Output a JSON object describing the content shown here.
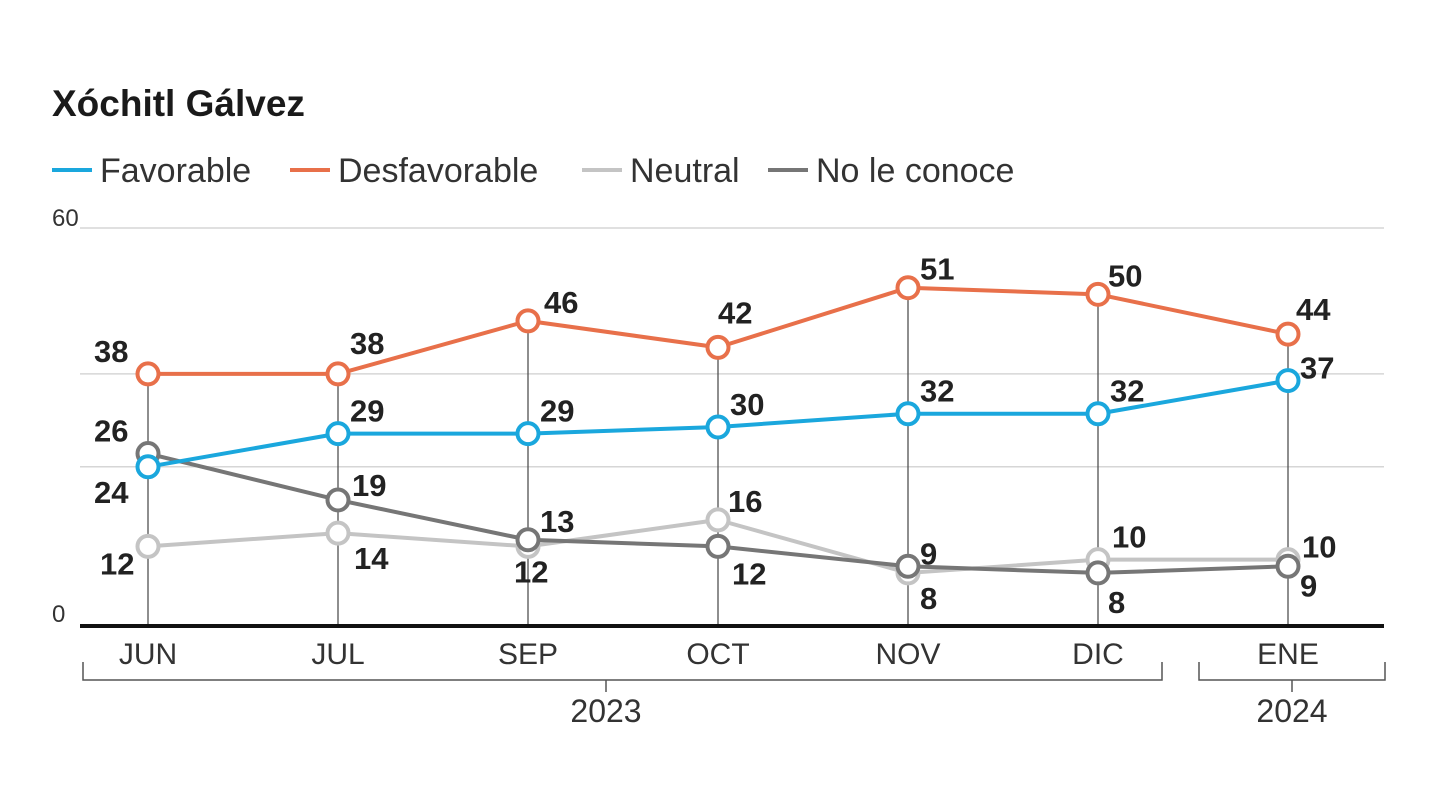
{
  "chart_data": {
    "type": "line",
    "title": "Xóchitl Gálvez",
    "categories": [
      "JUN",
      "JUL",
      "SEP",
      "OCT",
      "NOV",
      "DIC",
      "ENE"
    ],
    "groups": [
      {
        "label": "2023",
        "categories": [
          "JUN",
          "JUL",
          "SEP",
          "OCT",
          "NOV",
          "DIC"
        ]
      },
      {
        "label": "2024",
        "categories": [
          "ENE"
        ]
      }
    ],
    "ylim": [
      0,
      60
    ],
    "yticks": [
      0,
      24,
      38,
      60
    ],
    "ytick_labels": [
      "0",
      "",
      "",
      "60"
    ],
    "grid": true,
    "legend_position": "top-left",
    "series": [
      {
        "name": "Favorable",
        "color": "#1aa7dd",
        "values": [
          24,
          29,
          29,
          30,
          32,
          32,
          37
        ]
      },
      {
        "name": "Desfavorable",
        "color": "#e8704a",
        "values": [
          38,
          38,
          46,
          42,
          51,
          50,
          44
        ]
      },
      {
        "name": "Neutral",
        "color": "#c4c4c4",
        "values": [
          12,
          14,
          12,
          16,
          8,
          10,
          10
        ]
      },
      {
        "name": "No le conoce",
        "color": "#767676",
        "values": [
          26,
          19,
          13,
          12,
          9,
          8,
          9
        ]
      }
    ]
  }
}
